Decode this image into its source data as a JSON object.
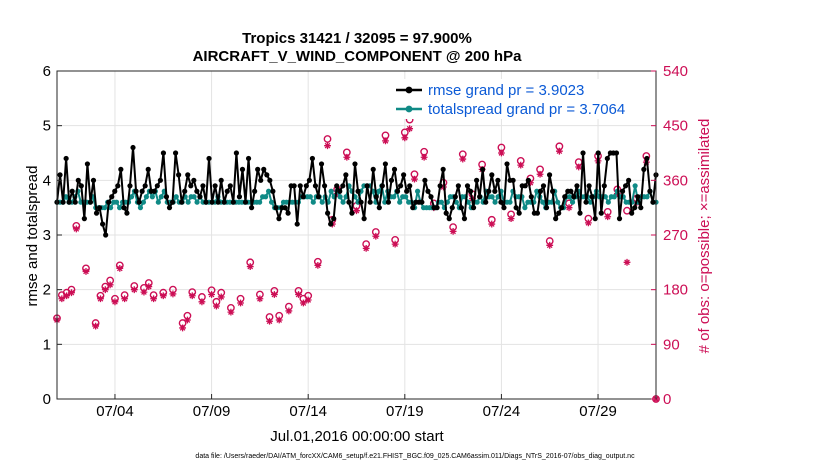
{
  "chart_data": {
    "type": "line",
    "title_line1": "Tropics 31421 / 32095 = 97.900%",
    "title_line2": "AIRCRAFT_V_WIND_COMPONENT @ 200 hPa",
    "xlabel": "Jul.01,2016 00:00:00 start",
    "ylabel": "rmse and totalspread",
    "ylabel_right": "# of obs: o=possible; ×=assimilated",
    "footnote": "data file: /Users/raeder/DAI/ATM_forcXX/CAM6_setup/f.e21.FHIST_BGC.f09_025.CAM6assim.011/Diags_NTrS_2016-07/obs_diag_output.nc",
    "x_range_days": [
      1.0,
      32.0
    ],
    "ylim": [
      0,
      6
    ],
    "ylim_right": [
      0,
      540
    ],
    "yticks": [
      "0",
      "1",
      "2",
      "3",
      "4",
      "5",
      "6"
    ],
    "yticks_right": [
      "0",
      "90",
      "180",
      "270",
      "360",
      "450",
      "540"
    ],
    "xticks": [
      {
        "day": 4,
        "label": "07/04"
      },
      {
        "day": 9,
        "label": "07/09"
      },
      {
        "day": 14,
        "label": "07/14"
      },
      {
        "day": 19,
        "label": "07/19"
      },
      {
        "day": 24,
        "label": "07/24"
      },
      {
        "day": 29,
        "label": "07/29"
      }
    ],
    "series": [
      {
        "name": "rmse grand pr = 3.9023",
        "color": "#000000",
        "values": [
          3.6,
          4.1,
          3.6,
          4.4,
          3.6,
          3.8,
          3.6,
          4.0,
          3.9,
          3.3,
          4.3,
          3.6,
          4.0,
          3.4,
          3.5,
          3.2,
          3.0,
          3.6,
          3.7,
          3.8,
          3.9,
          4.2,
          3.5,
          3.4,
          3.9,
          4.6,
          3.8,
          3.6,
          3.8,
          3.9,
          4.2,
          3.8,
          3.8,
          3.9,
          4.0,
          4.5,
          3.7,
          3.5,
          3.6,
          4.5,
          4.1,
          3.6,
          3.8,
          4.1,
          3.9,
          4.0,
          3.8,
          3.7,
          3.9,
          3.6,
          4.4,
          3.6,
          3.9,
          3.6,
          4.0,
          3.6,
          3.8,
          3.9,
          3.6,
          4.5,
          3.7,
          4.2,
          3.6,
          4.4,
          3.5,
          3.8,
          4.2,
          4.0,
          4.2,
          4.1,
          4.0,
          3.8,
          3.5,
          3.3,
          3.5,
          3.5,
          3.4,
          3.9,
          3.9,
          3.2,
          3.9,
          3.7,
          3.9,
          4.0,
          4.4,
          3.9,
          3.7,
          4.3,
          3.9,
          3.4,
          3.2,
          3.3,
          3.9,
          3.8,
          3.9,
          4.1,
          3.6,
          3.4,
          4.3,
          3.8,
          3.6,
          3.3,
          3.9,
          3.6,
          4.2,
          3.7,
          3.5,
          3.9,
          4.3,
          3.6,
          4.0,
          4.2,
          3.8,
          3.9,
          4.1,
          3.8,
          3.9,
          3.5,
          3.6,
          3.6,
          3.6,
          4.0,
          3.8,
          3.7,
          3.5,
          3.5,
          3.9,
          4.2,
          3.4,
          3.3,
          3.5,
          3.7,
          3.9,
          3.5,
          3.3,
          3.9,
          3.8,
          3.5,
          4.0,
          3.7,
          4.2,
          3.6,
          3.8,
          4.1,
          3.8,
          4.0,
          3.6,
          3.5,
          4.3,
          4.0,
          4.0,
          3.5,
          3.4,
          3.9,
          3.9,
          4.0,
          3.7,
          3.4,
          3.4,
          3.8,
          3.9,
          3.5,
          4.1,
          3.8,
          3.3,
          3.4,
          3.5,
          3.7,
          3.8,
          3.8,
          3.7,
          3.9,
          3.4,
          4.5,
          3.6,
          3.9,
          3.7,
          3.3,
          4.5,
          3.4,
          3.9,
          4.4,
          4.5,
          4.5,
          4.5,
          3.3,
          3.8,
          3.9,
          4.0,
          3.4,
          3.5,
          3.7,
          3.5,
          4.2,
          4.4,
          3.8,
          3.6,
          4.1
        ]
      },
      {
        "name": "totalspread grand pr = 3.7064",
        "color": "#0f8a86",
        "values": [
          3.6,
          3.6,
          3.6,
          3.7,
          3.6,
          3.6,
          3.7,
          3.8,
          3.6,
          3.6,
          3.6,
          3.6,
          3.7,
          3.5,
          3.5,
          3.5,
          3.5,
          3.6,
          3.5,
          3.6,
          3.6,
          3.5,
          3.6,
          3.6,
          3.6,
          3.7,
          3.8,
          3.6,
          3.5,
          3.6,
          3.7,
          3.8,
          3.7,
          3.8,
          3.6,
          3.7,
          3.8,
          3.6,
          3.6,
          3.6,
          3.7,
          3.6,
          3.6,
          3.7,
          3.6,
          3.7,
          3.7,
          3.6,
          3.7,
          3.6,
          3.6,
          3.6,
          3.6,
          3.6,
          3.7,
          3.6,
          3.6,
          3.6,
          3.6,
          3.6,
          3.6,
          3.6,
          3.6,
          3.6,
          3.6,
          3.6,
          3.6,
          3.6,
          3.6,
          3.7,
          3.7,
          3.8,
          3.6,
          3.5,
          3.5,
          3.5,
          3.6,
          3.6,
          3.6,
          3.6,
          3.6,
          3.6,
          3.7,
          3.7,
          3.7,
          3.7,
          3.6,
          3.7,
          3.7,
          3.6,
          3.7,
          3.6,
          3.8,
          3.7,
          3.8,
          3.7,
          3.6,
          3.7,
          3.9,
          3.8,
          3.7,
          3.6,
          3.8,
          3.9,
          3.9,
          3.9,
          3.8,
          3.6,
          3.8,
          3.9,
          3.6,
          3.8,
          3.7,
          3.7,
          3.8,
          3.6,
          3.7,
          3.7,
          3.6,
          3.6,
          3.5,
          3.8,
          3.6,
          3.5,
          3.5,
          3.5,
          3.5,
          3.5,
          3.6,
          3.6,
          3.5,
          3.6,
          3.7,
          3.7,
          3.6,
          3.5,
          3.7,
          3.7,
          3.6,
          3.5,
          3.6,
          3.6,
          3.7,
          3.6,
          3.8,
          3.7,
          3.7,
          3.6,
          3.7,
          3.8,
          3.6,
          3.6,
          3.6,
          3.8,
          3.7,
          3.7,
          3.7,
          3.5,
          3.6,
          3.6,
          3.6,
          3.8,
          3.7,
          3.6,
          3.5,
          3.6,
          3.6,
          3.8,
          3.6,
          3.5,
          3.5,
          3.7,
          3.7,
          3.6,
          3.7,
          3.8,
          3.7,
          3.7,
          3.7,
          3.6,
          3.7,
          3.8,
          3.7,
          3.7,
          3.7,
          3.6,
          3.7,
          3.7,
          3.8,
          3.7,
          3.7,
          3.6,
          3.6,
          3.6,
          3.9,
          3.6,
          3.7,
          3.7,
          3.7,
          3.8,
          3.6,
          3.6
        ]
      }
    ],
    "obs_possible": [
      {
        "day": 1.0,
        "n": 133
      },
      {
        "day": 1.25,
        "n": 171
      },
      {
        "day": 1.5,
        "n": 175
      },
      {
        "day": 1.75,
        "n": 180
      },
      {
        "day": 2.0,
        "n": 285
      },
      {
        "day": 2.5,
        "n": 215
      },
      {
        "day": 3.0,
        "n": 125
      },
      {
        "day": 3.25,
        "n": 170
      },
      {
        "day": 3.5,
        "n": 185
      },
      {
        "day": 3.75,
        "n": 195
      },
      {
        "day": 4.0,
        "n": 165
      },
      {
        "day": 4.25,
        "n": 220
      },
      {
        "day": 4.5,
        "n": 171
      },
      {
        "day": 5.0,
        "n": 186
      },
      {
        "day": 5.5,
        "n": 183
      },
      {
        "day": 5.75,
        "n": 191
      },
      {
        "day": 6.0,
        "n": 171
      },
      {
        "day": 6.5,
        "n": 175
      },
      {
        "day": 7.0,
        "n": 180
      },
      {
        "day": 7.5,
        "n": 125
      },
      {
        "day": 7.75,
        "n": 137
      },
      {
        "day": 8.0,
        "n": 176
      },
      {
        "day": 8.5,
        "n": 168
      },
      {
        "day": 9.0,
        "n": 179
      },
      {
        "day": 9.25,
        "n": 160
      },
      {
        "day": 9.5,
        "n": 175
      },
      {
        "day": 10.0,
        "n": 150
      },
      {
        "day": 10.5,
        "n": 165
      },
      {
        "day": 11.0,
        "n": 225
      },
      {
        "day": 11.5,
        "n": 172
      },
      {
        "day": 12.0,
        "n": 135
      },
      {
        "day": 12.25,
        "n": 178
      },
      {
        "day": 12.5,
        "n": 137
      },
      {
        "day": 13.0,
        "n": 152
      },
      {
        "day": 13.5,
        "n": 178
      },
      {
        "day": 13.75,
        "n": 165
      },
      {
        "day": 14.0,
        "n": 170
      },
      {
        "day": 14.5,
        "n": 226
      },
      {
        "day": 15.0,
        "n": 428
      },
      {
        "day": 15.25,
        "n": 295
      },
      {
        "day": 15.5,
        "n": 345
      },
      {
        "day": 16.0,
        "n": 406
      },
      {
        "day": 16.5,
        "n": 318
      },
      {
        "day": 17.0,
        "n": 255
      },
      {
        "day": 17.5,
        "n": 275
      },
      {
        "day": 18.0,
        "n": 434
      },
      {
        "day": 18.5,
        "n": 262
      },
      {
        "day": 19.0,
        "n": 439
      },
      {
        "day": 19.25,
        "n": 460
      },
      {
        "day": 19.5,
        "n": 370
      },
      {
        "day": 20.0,
        "n": 407
      },
      {
        "day": 20.5,
        "n": 322
      },
      {
        "day": 21.0,
        "n": 356
      },
      {
        "day": 21.5,
        "n": 283
      },
      {
        "day": 22.0,
        "n": 403
      },
      {
        "day": 22.5,
        "n": 337
      },
      {
        "day": 23.0,
        "n": 386
      },
      {
        "day": 23.5,
        "n": 295
      },
      {
        "day": 24.0,
        "n": 414
      },
      {
        "day": 24.5,
        "n": 304
      },
      {
        "day": 25.0,
        "n": 392
      },
      {
        "day": 25.5,
        "n": 363
      },
      {
        "day": 26.0,
        "n": 378
      },
      {
        "day": 26.5,
        "n": 260
      },
      {
        "day": 27.0,
        "n": 416
      },
      {
        "day": 27.5,
        "n": 322
      },
      {
        "day": 28.0,
        "n": 390
      },
      {
        "day": 28.5,
        "n": 297
      },
      {
        "day": 29.0,
        "n": 400
      },
      {
        "day": 29.5,
        "n": 308
      },
      {
        "day": 30.0,
        "n": 345
      },
      {
        "day": 30.5,
        "n": 310
      },
      {
        "day": 31.0,
        "n": 330
      },
      {
        "day": 31.5,
        "n": 400
      },
      {
        "day": 32.0,
        "n": 0
      }
    ],
    "obs_assimilated": [
      {
        "day": 1.0,
        "n": 130
      },
      {
        "day": 1.25,
        "n": 165
      },
      {
        "day": 1.5,
        "n": 170
      },
      {
        "day": 1.75,
        "n": 175
      },
      {
        "day": 2.0,
        "n": 280
      },
      {
        "day": 2.5,
        "n": 210
      },
      {
        "day": 3.0,
        "n": 120
      },
      {
        "day": 3.25,
        "n": 165
      },
      {
        "day": 3.5,
        "n": 180
      },
      {
        "day": 3.75,
        "n": 188
      },
      {
        "day": 4.0,
        "n": 160
      },
      {
        "day": 4.25,
        "n": 215
      },
      {
        "day": 4.5,
        "n": 165
      },
      {
        "day": 5.0,
        "n": 180
      },
      {
        "day": 5.5,
        "n": 176
      },
      {
        "day": 5.75,
        "n": 185
      },
      {
        "day": 6.0,
        "n": 165
      },
      {
        "day": 6.5,
        "n": 170
      },
      {
        "day": 7.0,
        "n": 173
      },
      {
        "day": 7.5,
        "n": 117
      },
      {
        "day": 7.75,
        "n": 130
      },
      {
        "day": 8.0,
        "n": 170
      },
      {
        "day": 8.5,
        "n": 160
      },
      {
        "day": 9.0,
        "n": 172
      },
      {
        "day": 9.25,
        "n": 153
      },
      {
        "day": 9.5,
        "n": 168
      },
      {
        "day": 10.0,
        "n": 143
      },
      {
        "day": 10.5,
        "n": 158
      },
      {
        "day": 11.0,
        "n": 218
      },
      {
        "day": 11.5,
        "n": 165
      },
      {
        "day": 12.0,
        "n": 128
      },
      {
        "day": 12.25,
        "n": 172
      },
      {
        "day": 12.5,
        "n": 130
      },
      {
        "day": 13.0,
        "n": 145
      },
      {
        "day": 13.5,
        "n": 172
      },
      {
        "day": 13.75,
        "n": 158
      },
      {
        "day": 14.0,
        "n": 163
      },
      {
        "day": 14.5,
        "n": 220
      },
      {
        "day": 15.0,
        "n": 417
      },
      {
        "day": 15.25,
        "n": 288
      },
      {
        "day": 15.5,
        "n": 338
      },
      {
        "day": 16.0,
        "n": 398
      },
      {
        "day": 16.5,
        "n": 310
      },
      {
        "day": 17.0,
        "n": 248
      },
      {
        "day": 17.5,
        "n": 268
      },
      {
        "day": 18.0,
        "n": 425
      },
      {
        "day": 18.5,
        "n": 255
      },
      {
        "day": 19.0,
        "n": 430
      },
      {
        "day": 19.25,
        "n": 445
      },
      {
        "day": 19.5,
        "n": 362
      },
      {
        "day": 20.0,
        "n": 398
      },
      {
        "day": 20.5,
        "n": 315
      },
      {
        "day": 21.0,
        "n": 349
      },
      {
        "day": 21.5,
        "n": 276
      },
      {
        "day": 22.0,
        "n": 395
      },
      {
        "day": 22.5,
        "n": 330
      },
      {
        "day": 23.0,
        "n": 378
      },
      {
        "day": 23.5,
        "n": 288
      },
      {
        "day": 24.0,
        "n": 405
      },
      {
        "day": 24.5,
        "n": 297
      },
      {
        "day": 25.0,
        "n": 385
      },
      {
        "day": 25.5,
        "n": 356
      },
      {
        "day": 26.0,
        "n": 370
      },
      {
        "day": 26.5,
        "n": 253
      },
      {
        "day": 27.0,
        "n": 408
      },
      {
        "day": 27.5,
        "n": 315
      },
      {
        "day": 28.0,
        "n": 382
      },
      {
        "day": 28.5,
        "n": 290
      },
      {
        "day": 29.0,
        "n": 392
      },
      {
        "day": 29.5,
        "n": 300
      },
      {
        "day": 30.0,
        "n": 338
      },
      {
        "day": 30.5,
        "n": 225
      },
      {
        "day": 31.0,
        "n": 323
      },
      {
        "day": 31.5,
        "n": 390
      },
      {
        "day": 32.0,
        "n": 0
      }
    ],
    "obs_color": "#cc0e55",
    "legend_position": "top-right",
    "grid": true
  }
}
